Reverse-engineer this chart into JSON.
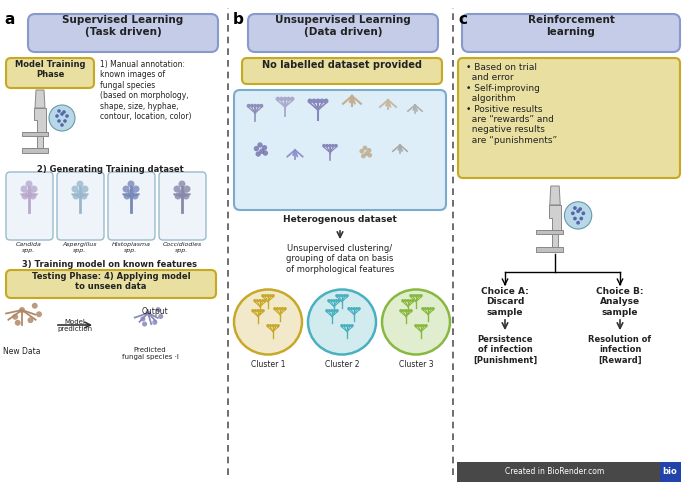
{
  "bg_color": "#ffffff",
  "panel_a_title": "Supervised Learning\n(Task driven)",
  "panel_b_title": "Unsupervised Learning\n(Data driven)",
  "panel_c_title": "Reinforcement\nlearning",
  "header_box_color": "#c5cce8",
  "header_box_edge": "#8899cc",
  "gold_box_color": "#e8dfa0",
  "gold_box_edge": "#c8a820",
  "light_blue_box_color": "#deeef8",
  "light_blue_box_edge": "#7aabcc",
  "model_training_text": "Model Training\nPhase",
  "annotation1_text": "1) Manual annotation:\nknown images of\nfungal species\n(based on morphology,\nshape, size, hyphae,\ncontour, location, color)",
  "annotation2_text": "2) Generating Training dataset",
  "annotation3_text": "3) Training model on known features",
  "testing_text": "Testing Phase: 4) Applying model\nto unseen data",
  "no_label_text": "No labelled dataset provided",
  "hetero_text": "Heterogenous dataset",
  "unsup_cluster_text": "Unsupervised clustering/\ngrouping of data on basis\nof morphological features",
  "cluster_labels": [
    "Cluster 1",
    "Cluster 2",
    "Cluster 3"
  ],
  "reinforcement_bullets": "• Based on trial\n  and error\n• Self-improving\n  algorithm\n• Positive results\n  are “rewards” and\n  negative results\n  are “punishments”",
  "choice_a_text": "Choice A:\nDiscard\nsample",
  "choice_b_text": "Choice B:\nAnalyse\nsample",
  "punishment_text": "Persistence\nof infection\n[Punishment]",
  "reward_text": "Resolution of\ninfection\n[Reward]",
  "candida_label": "Candida\nspp.",
  "aspergillus_label": "Aspergillus\nspp.",
  "histoplasma_label": "Histoplasma\nspp.",
  "coccidioides_label": "Coccidiodies\nspp.",
  "new_data_label": "New Data",
  "model_pred_label": "Model\nprediction",
  "output_label": "Output",
  "predicted_label": "Predicted\nfungal species ·I",
  "biorender_text": "Created in BioRender.com",
  "dashed_line_color": "#555555",
  "arrow_color": "#333333",
  "text_color": "#222222",
  "cluster1_color": "#c8a828",
  "cluster2_color": "#4ab0c0",
  "cluster3_color": "#88b840"
}
